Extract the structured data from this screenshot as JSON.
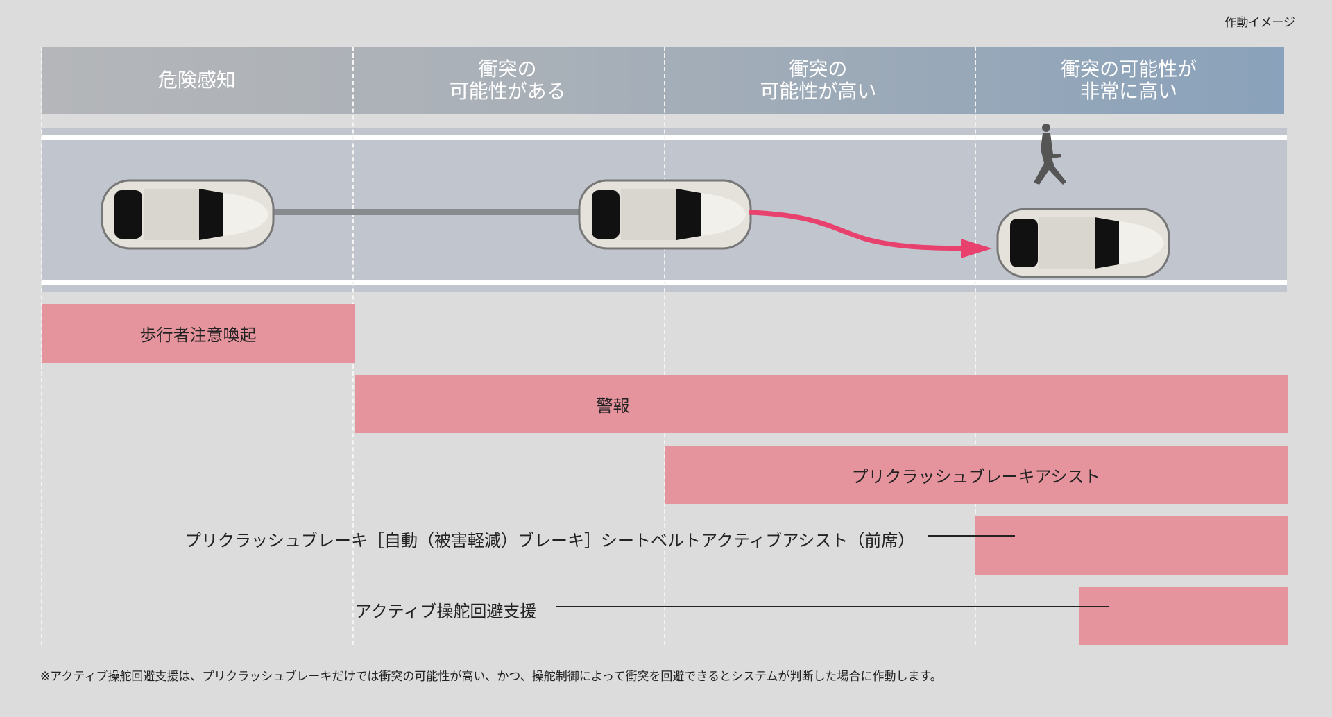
{
  "image_label": "作動イメージ",
  "phases": [
    {
      "label": "危険感知"
    },
    {
      "label": "衝突の\n可能性がある"
    },
    {
      "label": "衝突の\n可能性が高い"
    },
    {
      "label": "衝突の可能性が\n非常に高い"
    }
  ],
  "functions": [
    {
      "label": "歩行者注意喚起"
    },
    {
      "label": "警報"
    },
    {
      "label": "プリクラッシュブレーキアシスト"
    },
    {
      "label": "プリクラッシュブレーキ［自動（被害軽減）ブレーキ］シートベルトアクティブアシスト（前席）"
    },
    {
      "label": "アクティブ操舵回避支援"
    }
  ],
  "footnote": "※アクティブ操舵回避支援は、プリクラッシュブレーキだけでは衝突の可能性が高い、かつ、操舵制御によって衝突を回避できるとシステムが判断した場合に作動します。",
  "colors": {
    "bar": "#e5939c",
    "arrow": "#e8416e",
    "road": "#c1c5cd"
  }
}
